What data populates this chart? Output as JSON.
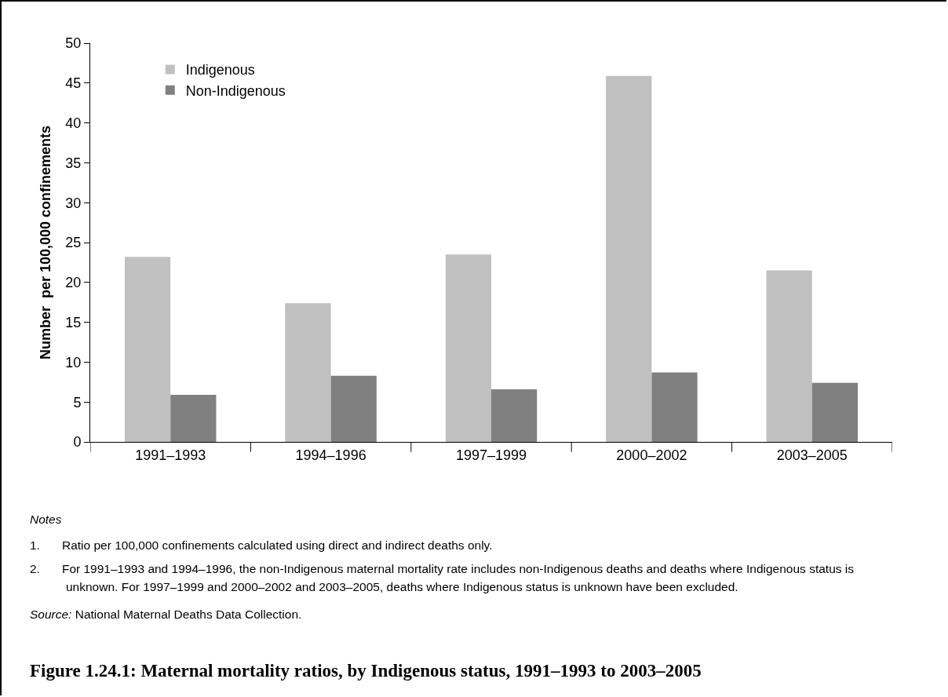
{
  "chart_data": {
    "type": "bar",
    "title": "Figure 1.24.1: Maternal mortality ratios, by Indigenous status, 1991–1993 to 2003–2005",
    "ylabel": "Number  per 100,000 confinements",
    "categories": [
      "1991–1993",
      "1994–1996",
      "1997–1999",
      "2000–2002",
      "2003–2005"
    ],
    "series": [
      {
        "name": "Indigenous",
        "color": "#c0c0c0",
        "values": [
          23.2,
          17.4,
          23.5,
          45.9,
          21.5
        ]
      },
      {
        "name": "Non-Indigenous",
        "color": "#808080",
        "values": [
          5.9,
          8.3,
          6.6,
          8.7,
          7.4
        ]
      }
    ],
    "ylim": [
      0,
      50
    ],
    "yticks": [
      0,
      5,
      10,
      15,
      20,
      25,
      30,
      35,
      40,
      45,
      50
    ],
    "grid": false,
    "legend": "top left",
    "annotations": [
      "Notes",
      "1. Ratio per 100,000 confinements calculated using direct and indirect deaths only.",
      "2. For 1991–1993 and 1994–1996, the non-Indigenous maternal mortality rate includes non-Indigenous deaths and deaths where Indigenous status is unknown. For 1997–1999 and 2000–2002 and 2003–2005, deaths where Indigenous status is unknown have been excluded.",
      "Source: National Maternal Deaths Data Collection."
    ]
  }
}
